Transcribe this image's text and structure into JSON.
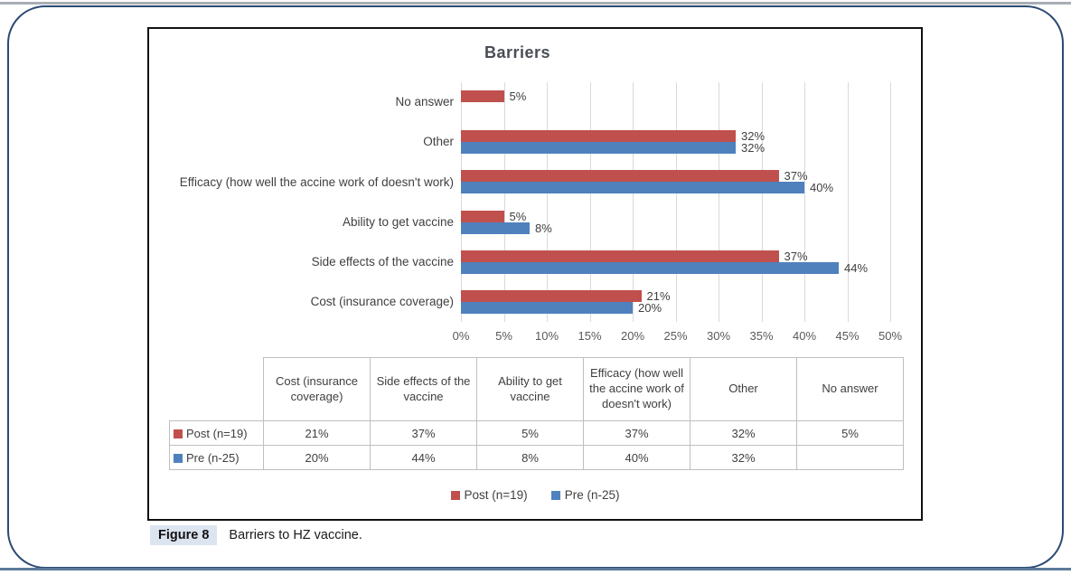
{
  "caption": {
    "label": "Figure 8",
    "text": "Barriers to HZ vaccine."
  },
  "chart_data": {
    "type": "bar",
    "orientation": "horizontal",
    "title": "Barriers",
    "categories": [
      "Cost (insurance coverage)",
      "Side effects of the vaccine",
      "Ability to get vaccine",
      "Efficacy (how well the accine work of doesn't work)",
      "Other",
      "No answer"
    ],
    "series": [
      {
        "name": "Post (n=19)",
        "color": "#C0504D",
        "values": [
          21,
          37,
          5,
          37,
          32,
          5
        ],
        "labels": [
          "21%",
          "37%",
          "5%",
          "37%",
          "32%",
          "5%"
        ]
      },
      {
        "name": "Pre (n-25)",
        "color": "#4F81BD",
        "values": [
          20,
          44,
          8,
          40,
          32,
          null
        ],
        "labels": [
          "20%",
          "44%",
          "8%",
          "40%",
          "32%",
          ""
        ]
      }
    ],
    "x_axis": {
      "min": 0,
      "max": 50,
      "ticks": [
        "0%",
        "5%",
        "10%",
        "15%",
        "20%",
        "25%",
        "30%",
        "35%",
        "40%",
        "45%",
        "50%"
      ]
    },
    "grid": true,
    "legend_position": "bottom",
    "data_table_shown": true
  },
  "table": {
    "columns": [
      "",
      "Cost (insurance coverage)",
      "Side effects of the vaccine",
      "Ability to get vaccine",
      "Efficacy (how well the accine work of doesn't work)",
      "Other",
      "No answer"
    ],
    "rows": [
      {
        "label": "Post (n=19)",
        "marker_color": "#C0504D",
        "cells": [
          "21%",
          "37%",
          "5%",
          "37%",
          "32%",
          "5%"
        ]
      },
      {
        "label": "Pre (n-25)",
        "marker_color": "#4F81BD",
        "cells": [
          "20%",
          "44%",
          "8%",
          "40%",
          "32%",
          ""
        ]
      }
    ]
  },
  "colors": {
    "series_post": "#C0504D",
    "series_pre": "#4F81BD",
    "gridline": "#D9D9D9",
    "table_border": "#BFBFBF",
    "caption_highlight": "#DCE4F0",
    "frame_border": "#2B4A73",
    "top_divider": "#A9AEB5",
    "bottom_divider": "#5B7A99",
    "text": "#3F3F3F",
    "tick_text": "#595959"
  }
}
